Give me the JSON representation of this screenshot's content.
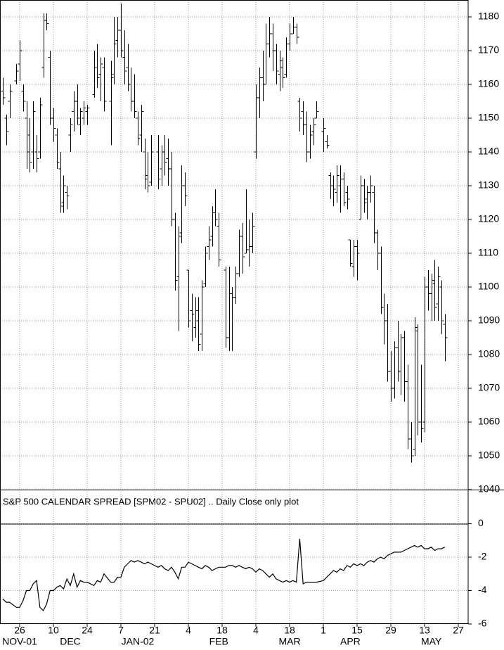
{
  "chart_data": [
    {
      "type": "ohlc",
      "x": [
        "2001-11-19",
        "2001-11-20",
        "2001-11-21",
        "2001-11-23",
        "2001-11-26",
        "2001-11-27",
        "2001-11-28",
        "2001-11-29",
        "2001-11-30",
        "2001-12-03",
        "2001-12-04",
        "2001-12-05",
        "2001-12-06",
        "2001-12-07",
        "2001-12-10",
        "2001-12-11",
        "2001-12-12",
        "2001-12-13",
        "2001-12-14",
        "2001-12-17",
        "2001-12-18",
        "2001-12-19",
        "2001-12-20",
        "2001-12-21",
        "2001-12-24",
        "2001-12-26",
        "2001-12-27",
        "2001-12-28",
        "2001-12-31",
        "2002-01-02",
        "2002-01-03",
        "2002-01-04",
        "2002-01-07",
        "2002-01-08",
        "2002-01-09",
        "2002-01-10",
        "2002-01-11",
        "2002-01-14",
        "2002-01-15",
        "2002-01-16",
        "2002-01-17",
        "2002-01-18",
        "2002-01-22",
        "2002-01-23",
        "2002-01-24",
        "2002-01-25",
        "2002-01-28",
        "2002-01-29",
        "2002-01-30",
        "2002-01-31",
        "2002-02-01",
        "2002-02-04",
        "2002-02-05",
        "2002-02-06",
        "2002-02-07",
        "2002-02-08",
        "2002-02-11",
        "2002-02-12",
        "2002-02-13",
        "2002-02-14",
        "2002-02-15",
        "2002-02-19",
        "2002-02-20",
        "2002-02-21",
        "2002-02-22",
        "2002-02-25",
        "2002-02-26",
        "2002-02-27",
        "2002-02-28",
        "2002-03-01",
        "2002-03-04",
        "2002-03-05",
        "2002-03-06",
        "2002-03-07",
        "2002-03-08",
        "2002-03-11",
        "2002-03-12",
        "2002-03-13",
        "2002-03-14",
        "2002-03-15",
        "2002-03-18",
        "2002-03-19",
        "2002-03-20",
        "2002-03-21",
        "2002-03-22",
        "2002-03-25",
        "2002-03-26",
        "2002-03-27",
        "2002-03-28",
        "2002-04-01",
        "2002-04-02",
        "2002-04-03",
        "2002-04-04",
        "2002-04-05",
        "2002-04-08",
        "2002-04-09",
        "2002-04-10",
        "2002-04-11",
        "2002-04-12",
        "2002-04-15",
        "2002-04-16",
        "2002-04-17",
        "2002-04-18",
        "2002-04-19",
        "2002-04-22",
        "2002-04-23",
        "2002-04-24",
        "2002-04-25",
        "2002-04-26",
        "2002-04-29",
        "2002-04-30",
        "2002-05-01",
        "2002-05-02",
        "2002-05-03",
        "2002-05-06",
        "2002-05-07",
        "2002-05-08",
        "2002-05-09",
        "2002-05-10",
        "2002-05-13",
        "2002-05-14",
        "2002-05-15",
        "2002-05-16",
        "2002-05-17",
        "2002-05-20",
        "2002-05-21"
      ],
      "open": [
        1158,
        1150,
        1155,
        1161,
        1166,
        1158,
        1150,
        1145,
        1140,
        1140,
        1140,
        1165,
        1179,
        1168,
        1150,
        1145,
        1135,
        1125,
        1128,
        1145,
        1152,
        1155,
        1148,
        1150,
        1152,
        1157,
        1165,
        1163,
        1165,
        1155,
        1163,
        1173,
        1176,
        1168,
        1165,
        1160,
        1155,
        1150,
        1145,
        1140,
        1133,
        1131,
        1140,
        1135,
        1140,
        1138,
        1135,
        1120,
        1103,
        1116,
        1130,
        1105,
        1093,
        1088,
        1090,
        1086,
        1101,
        1112,
        1115,
        1122,
        1118,
        1105,
        1085,
        1098,
        1097,
        1104,
        1115,
        1110,
        1111,
        1112,
        1140,
        1156,
        1162,
        1160,
        1172,
        1175,
        1170,
        1163,
        1165,
        1163,
        1172,
        1175,
        1177,
        1155,
        1152,
        1148,
        1140,
        1146,
        1150,
        1146,
        1143,
        1133,
        1130,
        1128,
        1130,
        1132,
        1128,
        1114,
        1106,
        1112,
        1120,
        1130,
        1126,
        1128,
        1128,
        1116,
        1110,
        1094,
        1090,
        1075,
        1070,
        1082,
        1075,
        1085,
        1072,
        1055,
        1052,
        1087,
        1060,
        1060,
        1100,
        1098,
        1101,
        1095,
        1100,
        1089
      ],
      "high": [
        1162,
        1151,
        1160,
        1166,
        1173,
        1160,
        1155,
        1150,
        1155,
        1145,
        1156,
        1181,
        1181,
        1170,
        1153,
        1147,
        1140,
        1133,
        1130,
        1150,
        1158,
        1160,
        1153,
        1155,
        1154,
        1170,
        1172,
        1168,
        1168,
        1167,
        1180,
        1180,
        1184,
        1176,
        1172,
        1165,
        1163,
        1152,
        1154,
        1144,
        1140,
        1145,
        1145,
        1142,
        1145,
        1144,
        1140,
        1122,
        1118,
        1136,
        1134,
        1105,
        1098,
        1097,
        1097,
        1102,
        1112,
        1118,
        1124,
        1129,
        1122,
        1106,
        1106,
        1100,
        1106,
        1117,
        1119,
        1129,
        1120,
        1122,
        1160,
        1165,
        1170,
        1178,
        1180,
        1178,
        1172,
        1170,
        1168,
        1174,
        1178,
        1180,
        1178,
        1156,
        1155,
        1152,
        1148,
        1150,
        1155,
        1150,
        1145,
        1134,
        1133,
        1136,
        1136,
        1134,
        1130,
        1114,
        1114,
        1114,
        1133,
        1132,
        1130,
        1133,
        1130,
        1117,
        1112,
        1098,
        1095,
        1081,
        1084,
        1090,
        1086,
        1087,
        1077,
        1060,
        1091,
        1089,
        1077,
        1103,
        1105,
        1104,
        1108,
        1106,
        1102,
        1092
      ],
      "low": [
        1154,
        1142,
        1150,
        1160,
        1161,
        1152,
        1135,
        1134,
        1135,
        1134,
        1138,
        1162,
        1176,
        1148,
        1143,
        1135,
        1122,
        1122,
        1123,
        1140,
        1146,
        1148,
        1145,
        1148,
        1148,
        1156,
        1159,
        1155,
        1152,
        1142,
        1160,
        1168,
        1168,
        1160,
        1158,
        1152,
        1150,
        1142,
        1140,
        1129,
        1128,
        1130,
        1129,
        1130,
        1133,
        1130,
        1118,
        1099,
        1087,
        1113,
        1124,
        1088,
        1084,
        1085,
        1081,
        1081,
        1100,
        1108,
        1112,
        1118,
        1106,
        1082,
        1081,
        1081,
        1095,
        1103,
        1104,
        1110,
        1106,
        1110,
        1138,
        1150,
        1155,
        1160,
        1168,
        1164,
        1160,
        1158,
        1159,
        1162,
        1170,
        1175,
        1172,
        1146,
        1145,
        1137,
        1138,
        1142,
        1150,
        1140,
        1141,
        1126,
        1124,
        1125,
        1122,
        1124,
        1123,
        1106,
        1103,
        1102,
        1120,
        1122,
        1120,
        1125,
        1113,
        1105,
        1092,
        1083,
        1072,
        1066,
        1067,
        1072,
        1068,
        1066,
        1052,
        1048,
        1050,
        1056,
        1054,
        1057,
        1093,
        1090,
        1090,
        1090,
        1086,
        1078
      ],
      "close": [
        1156,
        1146,
        1158,
        1164,
        1170,
        1155,
        1140,
        1137,
        1152,
        1138,
        1154,
        1179,
        1178,
        1150,
        1147,
        1137,
        1124,
        1130,
        1127,
        1148,
        1155,
        1150,
        1152,
        1153,
        1153,
        1165,
        1162,
        1166,
        1155,
        1162,
        1172,
        1176,
        1170,
        1164,
        1160,
        1155,
        1152,
        1144,
        1152,
        1132,
        1130,
        1140,
        1132,
        1140,
        1137,
        1135,
        1120,
        1102,
        1115,
        1130,
        1127,
        1090,
        1092,
        1093,
        1083,
        1100,
        1110,
        1114,
        1122,
        1120,
        1108,
        1085,
        1098,
        1097,
        1104,
        1115,
        1109,
        1111,
        1112,
        1118,
        1156,
        1162,
        1160,
        1172,
        1175,
        1170,
        1164,
        1167,
        1162,
        1172,
        1175,
        1177,
        1174,
        1150,
        1148,
        1140,
        1145,
        1148,
        1152,
        1147,
        1142,
        1130,
        1129,
        1133,
        1132,
        1125,
        1126,
        1107,
        1112,
        1110,
        1130,
        1125,
        1128,
        1130,
        1116,
        1110,
        1094,
        1090,
        1075,
        1070,
        1082,
        1075,
        1085,
        1072,
        1055,
        1050,
        1088,
        1060,
        1058,
        1100,
        1098,
        1102,
        1094,
        1103,
        1090,
        1085
      ],
      "color": "#000000",
      "ylim": [
        1040,
        1185
      ],
      "yticks": [
        1040,
        1050,
        1060,
        1070,
        1080,
        1090,
        1100,
        1110,
        1120,
        1130,
        1140,
        1150,
        1160,
        1170,
        1180
      ],
      "grid": true
    },
    {
      "type": "line",
      "title": "S&P 500 CALENDAR SPREAD [SPM02 - SPU02] .. Daily Close only plot",
      "x": [
        "2001-11-19",
        "2001-11-20",
        "2001-11-21",
        "2001-11-23",
        "2001-11-26",
        "2001-11-27",
        "2001-11-28",
        "2001-11-29",
        "2001-11-30",
        "2001-12-03",
        "2001-12-04",
        "2001-12-05",
        "2001-12-06",
        "2001-12-07",
        "2001-12-10",
        "2001-12-11",
        "2001-12-12",
        "2001-12-13",
        "2001-12-14",
        "2001-12-17",
        "2001-12-18",
        "2001-12-19",
        "2001-12-20",
        "2001-12-21",
        "2001-12-24",
        "2001-12-26",
        "2001-12-27",
        "2001-12-28",
        "2001-12-31",
        "2002-01-02",
        "2002-01-03",
        "2002-01-04",
        "2002-01-07",
        "2002-01-08",
        "2002-01-09",
        "2002-01-10",
        "2002-01-11",
        "2002-01-14",
        "2002-01-15",
        "2002-01-16",
        "2002-01-17",
        "2002-01-18",
        "2002-01-22",
        "2002-01-23",
        "2002-01-24",
        "2002-01-25",
        "2002-01-28",
        "2002-01-29",
        "2002-01-30",
        "2002-01-31",
        "2002-02-01",
        "2002-02-04",
        "2002-02-05",
        "2002-02-06",
        "2002-02-07",
        "2002-02-08",
        "2002-02-11",
        "2002-02-12",
        "2002-02-13",
        "2002-02-14",
        "2002-02-15",
        "2002-02-19",
        "2002-02-20",
        "2002-02-21",
        "2002-02-22",
        "2002-02-25",
        "2002-02-26",
        "2002-02-27",
        "2002-02-28",
        "2002-03-01",
        "2002-03-04",
        "2002-03-05",
        "2002-03-06",
        "2002-03-07",
        "2002-03-08",
        "2002-03-11",
        "2002-03-12",
        "2002-03-13",
        "2002-03-14",
        "2002-03-15",
        "2002-03-18",
        "2002-03-19",
        "2002-03-20",
        "2002-03-21",
        "2002-03-22",
        "2002-03-25",
        "2002-03-26",
        "2002-03-27",
        "2002-03-28",
        "2002-04-01",
        "2002-04-02",
        "2002-04-03",
        "2002-04-04",
        "2002-04-05",
        "2002-04-08",
        "2002-04-09",
        "2002-04-10",
        "2002-04-11",
        "2002-04-12",
        "2002-04-15",
        "2002-04-16",
        "2002-04-17",
        "2002-04-18",
        "2002-04-19",
        "2002-04-22",
        "2002-04-23",
        "2002-04-24",
        "2002-04-25",
        "2002-04-26",
        "2002-04-29",
        "2002-04-30",
        "2002-05-01",
        "2002-05-02",
        "2002-05-03",
        "2002-05-06",
        "2002-05-07",
        "2002-05-08",
        "2002-05-09",
        "2002-05-10",
        "2002-05-13",
        "2002-05-14",
        "2002-05-15",
        "2002-05-16",
        "2002-05-17",
        "2002-05-20",
        "2002-05-21"
      ],
      "values": [
        -4.5,
        -4.7,
        -4.7,
        -5.0,
        -5.0,
        -4.6,
        -4.0,
        -4.0,
        -3.6,
        -3.4,
        -5.0,
        -5.2,
        -4.8,
        -4.0,
        -4.0,
        -3.8,
        -3.7,
        -3.9,
        -3.3,
        -3.7,
        -3.0,
        -3.8,
        -3.4,
        -3.5,
        -3.5,
        -3.7,
        -3.4,
        -3.5,
        -3.0,
        -3.5,
        -3.5,
        -3.2,
        -3.2,
        -2.6,
        -2.4,
        -2.2,
        -2.3,
        -2.2,
        -2.3,
        -2.4,
        -2.3,
        -2.4,
        -2.6,
        -2.5,
        -2.7,
        -2.8,
        -2.6,
        -2.9,
        -3.3,
        -2.6,
        -2.6,
        -2.3,
        -2.4,
        -2.5,
        -2.6,
        -2.7,
        -2.5,
        -2.6,
        -2.8,
        -2.7,
        -2.6,
        -2.6,
        -2.5,
        -2.5,
        -2.6,
        -2.5,
        -2.6,
        -2.7,
        -2.6,
        -2.7,
        -2.9,
        -2.7,
        -2.8,
        -3.0,
        -3.2,
        -3.0,
        -3.3,
        -3.4,
        -3.5,
        -3.4,
        -3.5,
        -3.4,
        -3.5,
        -0.9,
        -3.6,
        -3.5,
        -3.5,
        -3.5,
        -3.5,
        -3.4,
        -3.2,
        -3.0,
        -2.8,
        -2.9,
        -2.7,
        -2.8,
        -2.5,
        -2.6,
        -2.4,
        -2.5,
        -2.4,
        -2.5,
        -2.3,
        -2.2,
        -2.3,
        -2.1,
        -2.0,
        -2.1,
        -1.9,
        -1.8,
        -1.7,
        -1.7,
        -1.7,
        -1.6,
        -1.5,
        -1.4,
        -1.3,
        -1.4,
        -1.3,
        -1.5,
        -1.5,
        -1.4,
        -1.6,
        -1.5,
        -1.5,
        -1.4
      ],
      "color": "#000000",
      "ylim": [
        -6,
        2
      ],
      "yticks": [
        -6,
        -4,
        -2,
        0
      ],
      "xticks": [
        {
          "value": "2001-11-26",
          "label": "26"
        },
        {
          "value": "2001-12-10",
          "label": "10"
        },
        {
          "value": "2001-12-24",
          "label": "24"
        },
        {
          "value": "2002-01-07",
          "label": "7"
        },
        {
          "value": "2002-01-21",
          "label": "21"
        },
        {
          "value": "2002-02-04",
          "label": "4"
        },
        {
          "value": "2002-02-18",
          "label": "18"
        },
        {
          "value": "2002-03-04",
          "label": "4"
        },
        {
          "value": "2002-03-18",
          "label": "18"
        },
        {
          "value": "2002-04-01",
          "label": "1"
        },
        {
          "value": "2002-04-15",
          "label": "15"
        },
        {
          "value": "2002-04-29",
          "label": "29"
        },
        {
          "value": "2002-05-13",
          "label": "13"
        },
        {
          "value": "2002-05-27",
          "label": "27"
        }
      ],
      "month_labels": [
        {
          "value": "2001-11-26",
          "label": "NOV-01"
        },
        {
          "value": "2001-12-17",
          "label": "DEC"
        },
        {
          "value": "2002-01-14",
          "label": "JAN-02"
        },
        {
          "value": "2002-02-15",
          "label": "FEB"
        },
        {
          "value": "2002-03-18",
          "label": "MAR"
        },
        {
          "value": "2002-04-11",
          "label": "APR"
        },
        {
          "value": "2002-05-15",
          "label": "MAY"
        }
      ],
      "grid": true
    }
  ]
}
